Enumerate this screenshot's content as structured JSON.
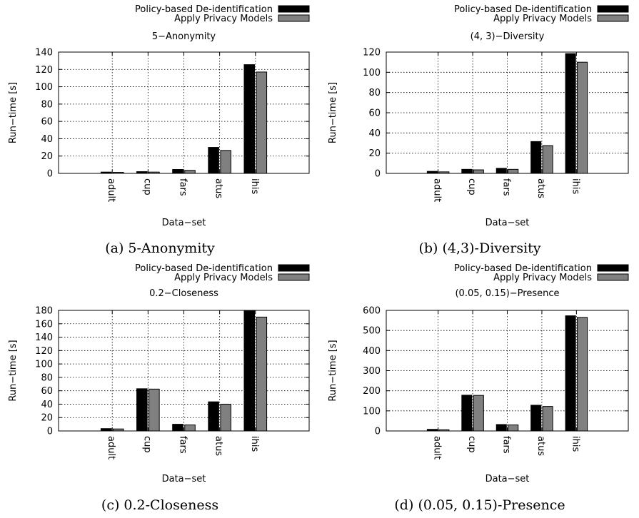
{
  "legend": {
    "entries": [
      {
        "name": "Policy-based De-identification",
        "color": "#000000"
      },
      {
        "name": "Apply Privacy Models",
        "color": "#808080"
      }
    ],
    "placement": "top-right"
  },
  "chart_data": [
    {
      "type": "bar",
      "title": "5−Anonymity",
      "caption_letter": "(a)",
      "caption_text": "5-Anonymity",
      "xlabel": "Data−set",
      "ylabel": "Run−time [s]",
      "categories": [
        "adult",
        "cup",
        "fars",
        "atus",
        "ihis"
      ],
      "ylim": [
        0,
        140
      ],
      "yticks": [
        0,
        20,
        40,
        60,
        80,
        100,
        120,
        140
      ],
      "grid": true,
      "series": [
        {
          "name": "Policy-based De-identification",
          "values": [
            1.5,
            2,
            4.5,
            30,
            125.5
          ]
        },
        {
          "name": "Apply Privacy Models",
          "values": [
            1.2,
            1.5,
            3.5,
            26.5,
            117
          ]
        }
      ]
    },
    {
      "type": "bar",
      "title": "(4, 3)−Diversity",
      "caption_letter": "(b)",
      "caption_text": "(4,3)-Diversity",
      "xlabel": "Data−set",
      "ylabel": "Run−time [s]",
      "categories": [
        "adult",
        "cup",
        "fars",
        "atus",
        "ihis"
      ],
      "ylim": [
        0,
        120
      ],
      "yticks": [
        0,
        20,
        40,
        60,
        80,
        100,
        120
      ],
      "grid": true,
      "series": [
        {
          "name": "Policy-based De-identification",
          "values": [
            2,
            4,
            5,
            31.5,
            118.5
          ]
        },
        {
          "name": "Apply Privacy Models",
          "values": [
            1.5,
            3.5,
            4,
            27.5,
            110
          ]
        }
      ]
    },
    {
      "type": "bar",
      "title": "0.2−Closeness",
      "caption_letter": "(c)",
      "caption_text": "0.2-Closeness",
      "xlabel": "Data−set",
      "ylabel": "Run−time [s]",
      "categories": [
        "adult",
        "cup",
        "fars",
        "atus",
        "ihis"
      ],
      "ylim": [
        0,
        180
      ],
      "yticks": [
        0,
        20,
        40,
        60,
        80,
        100,
        120,
        140,
        160,
        180
      ],
      "grid": true,
      "series": [
        {
          "name": "Policy-based De-identification",
          "values": [
            3.5,
            63,
            10,
            43.5,
            179
          ]
        },
        {
          "name": "Apply Privacy Models",
          "values": [
            3,
            62.5,
            9,
            40,
            170
          ]
        }
      ]
    },
    {
      "type": "bar",
      "title": "(0.05, 0.15)−Presence",
      "caption_letter": "(d)",
      "caption_text": "(0.05, 0.15)-Presence",
      "xlabel": "Data−set",
      "ylabel": "Run−time [s]",
      "categories": [
        "adult",
        "cup",
        "fars",
        "atus",
        "ihis"
      ],
      "ylim": [
        0,
        600
      ],
      "yticks": [
        0,
        100,
        200,
        300,
        400,
        500,
        600
      ],
      "grid": true,
      "series": [
        {
          "name": "Policy-based De-identification",
          "values": [
            8,
            178,
            32,
            128,
            573
          ]
        },
        {
          "name": "Apply Privacy Models",
          "values": [
            6,
            177,
            30,
            122,
            565
          ]
        }
      ]
    }
  ]
}
